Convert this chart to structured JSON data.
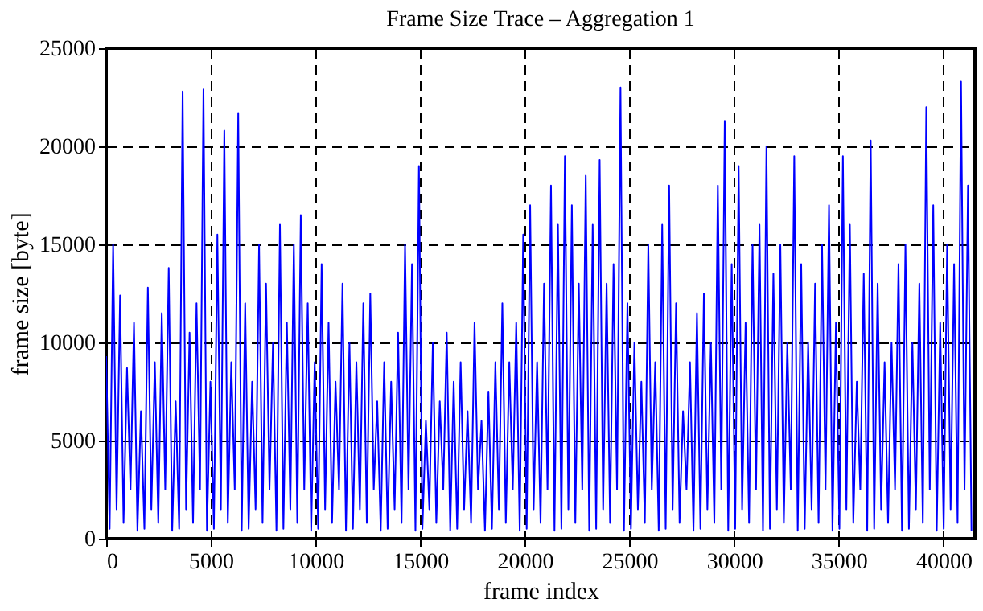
{
  "chart_data": {
    "type": "line",
    "title": "Frame Size Trace – Aggregation 1",
    "xlabel": "frame index",
    "ylabel": "frame size [byte]",
    "xlim": [
      0,
      41500
    ],
    "ylim": [
      0,
      25000
    ],
    "xticks": [
      0,
      5000,
      10000,
      15000,
      20000,
      25000,
      30000,
      35000,
      40000
    ],
    "yticks": [
      0,
      5000,
      10000,
      15000,
      20000,
      25000
    ],
    "grid": true,
    "line_style": "solid",
    "series": [
      {
        "color": "#0000ff",
        "x": [
          0,
          166,
          332,
          498,
          664,
          830,
          996,
          1162,
          1328,
          1494,
          1660,
          1826,
          1992,
          2158,
          2324,
          2490,
          2656,
          2822,
          2988,
          3154,
          3320,
          3486,
          3652,
          3818,
          3984,
          4150,
          4316,
          4482,
          4648,
          4814,
          4980,
          5146,
          5312,
          5478,
          5644,
          5810,
          5976,
          6142,
          6308,
          6474,
          6640,
          6806,
          6972,
          7138,
          7304,
          7470,
          7636,
          7802,
          7968,
          8134,
          8300,
          8466,
          8632,
          8798,
          8964,
          9130,
          9296,
          9462,
          9628,
          9794,
          9960,
          10126,
          10292,
          10458,
          10624,
          10790,
          10956,
          11122,
          11288,
          11454,
          11620,
          11786,
          11952,
          12118,
          12284,
          12450,
          12616,
          12782,
          12948,
          13114,
          13280,
          13446,
          13612,
          13778,
          13944,
          14110,
          14276,
          14442,
          14608,
          14774,
          14940,
          15106,
          15272,
          15438,
          15604,
          15770,
          15936,
          16102,
          16268,
          16434,
          16600,
          16766,
          16932,
          17098,
          17264,
          17430,
          17596,
          17762,
          17928,
          18094,
          18260,
          18426,
          18592,
          18758,
          18924,
          19090,
          19256,
          19422,
          19588,
          19754,
          19920,
          20086,
          20252,
          20418,
          20584,
          20750,
          20916,
          21082,
          21248,
          21414,
          21580,
          21746,
          21912,
          22078,
          22244,
          22410,
          22576,
          22742,
          22908,
          23074,
          23240,
          23406,
          23572,
          23738,
          23904,
          24070,
          24236,
          24402,
          24568,
          24734,
          24900,
          25066,
          25232,
          25398,
          25564,
          25730,
          25896,
          26062,
          26228,
          26394,
          26560,
          26726,
          26892,
          27058,
          27224,
          27390,
          27556,
          27722,
          27888,
          28054,
          28220,
          28386,
          28552,
          28718,
          28884,
          29050,
          29216,
          29382,
          29548,
          29714,
          29880,
          30046,
          30212,
          30378,
          30544,
          30710,
          30876,
          31042,
          31208,
          31374,
          31540,
          31706,
          31872,
          32038,
          32204,
          32370,
          32536,
          32702,
          32868,
          33034,
          33200,
          33366,
          33532,
          33698,
          33864,
          34030,
          34196,
          34362,
          34528,
          34694,
          34860,
          35026,
          35192,
          35358,
          35524,
          35690,
          35856,
          36022,
          36188,
          36354,
          36520,
          36686,
          36852,
          37018,
          37184,
          37350,
          37516,
          37682,
          37848,
          38014,
          38180,
          38346,
          38512,
          38678,
          38844,
          39010,
          39176,
          39342,
          39508,
          39674,
          39840,
          40006,
          40172,
          40338,
          40504,
          40670,
          40836,
          41002,
          41168,
          41334
        ],
        "values": [
          9300,
          500,
          15000,
          1500,
          12400,
          800,
          8700,
          2500,
          11000,
          400,
          6500,
          500,
          12800,
          1500,
          9000,
          800,
          11500,
          2500,
          13800,
          400,
          7000,
          500,
          22800,
          1500,
          10500,
          800,
          12000,
          2500,
          22900,
          400,
          8000,
          500,
          15500,
          1500,
          20800,
          800,
          9000,
          2500,
          21700,
          400,
          12000,
          500,
          8000,
          1500,
          15000,
          800,
          13000,
          2500,
          10000,
          400,
          16000,
          500,
          11000,
          1500,
          15000,
          800,
          16500,
          2500,
          12000,
          400,
          9000,
          500,
          14000,
          1500,
          11000,
          800,
          8000,
          2500,
          13000,
          400,
          10000,
          500,
          9000,
          1500,
          12000,
          800,
          12500,
          2500,
          7000,
          400,
          9000,
          500,
          8000,
          1500,
          10500,
          800,
          15000,
          2500,
          14000,
          400,
          19000,
          500,
          6000,
          1500,
          10000,
          800,
          7000,
          2500,
          10500,
          400,
          8000,
          500,
          9000,
          1500,
          6500,
          800,
          11000,
          2500,
          6000,
          400,
          7500,
          500,
          9000,
          1500,
          12000,
          800,
          9000,
          2500,
          11000,
          400,
          15500,
          500,
          17000,
          1500,
          9000,
          800,
          13000,
          2500,
          18000,
          400,
          16000,
          500,
          19500,
          1500,
          17000,
          800,
          13000,
          2500,
          18500,
          400,
          16000,
          500,
          19300,
          1500,
          13000,
          800,
          14000,
          2500,
          23000,
          400,
          12000,
          500,
          10000,
          1500,
          8000,
          800,
          15000,
          2500,
          9000,
          400,
          16000,
          500,
          18000,
          1500,
          12000,
          800,
          6500,
          2500,
          9000,
          400,
          11500,
          500,
          12500,
          1500,
          10000,
          800,
          18000,
          2500,
          21300,
          400,
          14000,
          500,
          19000,
          1500,
          11000,
          800,
          15000,
          2500,
          16000,
          400,
          20000,
          500,
          13500,
          1500,
          15000,
          800,
          10000,
          2500,
          19500,
          400,
          14000,
          500,
          10000,
          1500,
          13000,
          800,
          15000,
          2500,
          17000,
          400,
          11000,
          500,
          19500,
          1500,
          16000,
          800,
          8000,
          2500,
          13500,
          400,
          20300,
          500,
          13000,
          1500,
          9000,
          800,
          10000,
          2500,
          14000,
          400,
          15000,
          500,
          10000,
          1500,
          13000,
          800,
          22000,
          2500,
          17000,
          400,
          11000,
          500,
          15000,
          1500,
          14000,
          800,
          23300,
          2500,
          18000,
          400
        ]
      }
    ]
  }
}
